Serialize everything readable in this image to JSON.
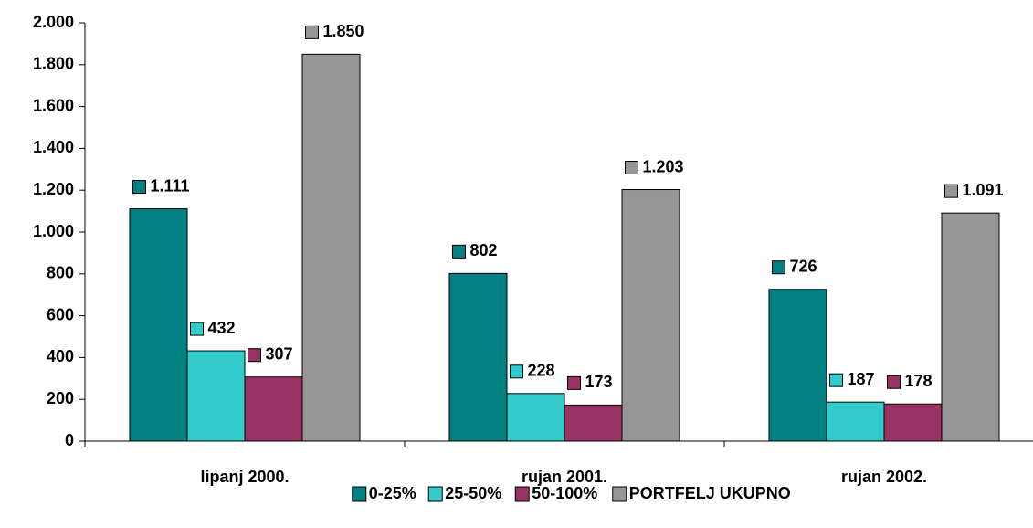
{
  "chart_data": {
    "type": "bar",
    "categories": [
      "lipanj 2000.",
      "rujan 2001.",
      "rujan 2002."
    ],
    "series": [
      {
        "name": "0-25%",
        "color": "#008080",
        "values": [
          1111,
          802,
          726
        ],
        "value_labels": [
          "1.111",
          "802",
          "726"
        ]
      },
      {
        "name": "25-50%",
        "color": "#33cccc",
        "values": [
          432,
          228,
          187
        ],
        "value_labels": [
          "432",
          "228",
          "187"
        ]
      },
      {
        "name": "50-100%",
        "color": "#993366",
        "values": [
          307,
          173,
          178
        ],
        "value_labels": [
          "307",
          "173",
          "178"
        ]
      },
      {
        "name": "PORTFELJ UKUPNO",
        "color": "#969696",
        "values": [
          1850,
          1203,
          1091
        ],
        "value_labels": [
          "1.850",
          "1.203",
          "1.091"
        ]
      }
    ],
    "ylim": [
      0,
      2000
    ],
    "yticks": [
      0,
      200,
      400,
      600,
      800,
      {
        "value": 1000,
        "label": "1.000"
      },
      {
        "value": 1200,
        "label": "1.200"
      },
      {
        "value": 1400,
        "label": "1.400"
      },
      {
        "value": 1600,
        "label": "1.600"
      },
      {
        "value": 1800,
        "label": "1.800"
      },
      {
        "value": 2000,
        "label": "2.000"
      }
    ],
    "legend": "bottom"
  }
}
